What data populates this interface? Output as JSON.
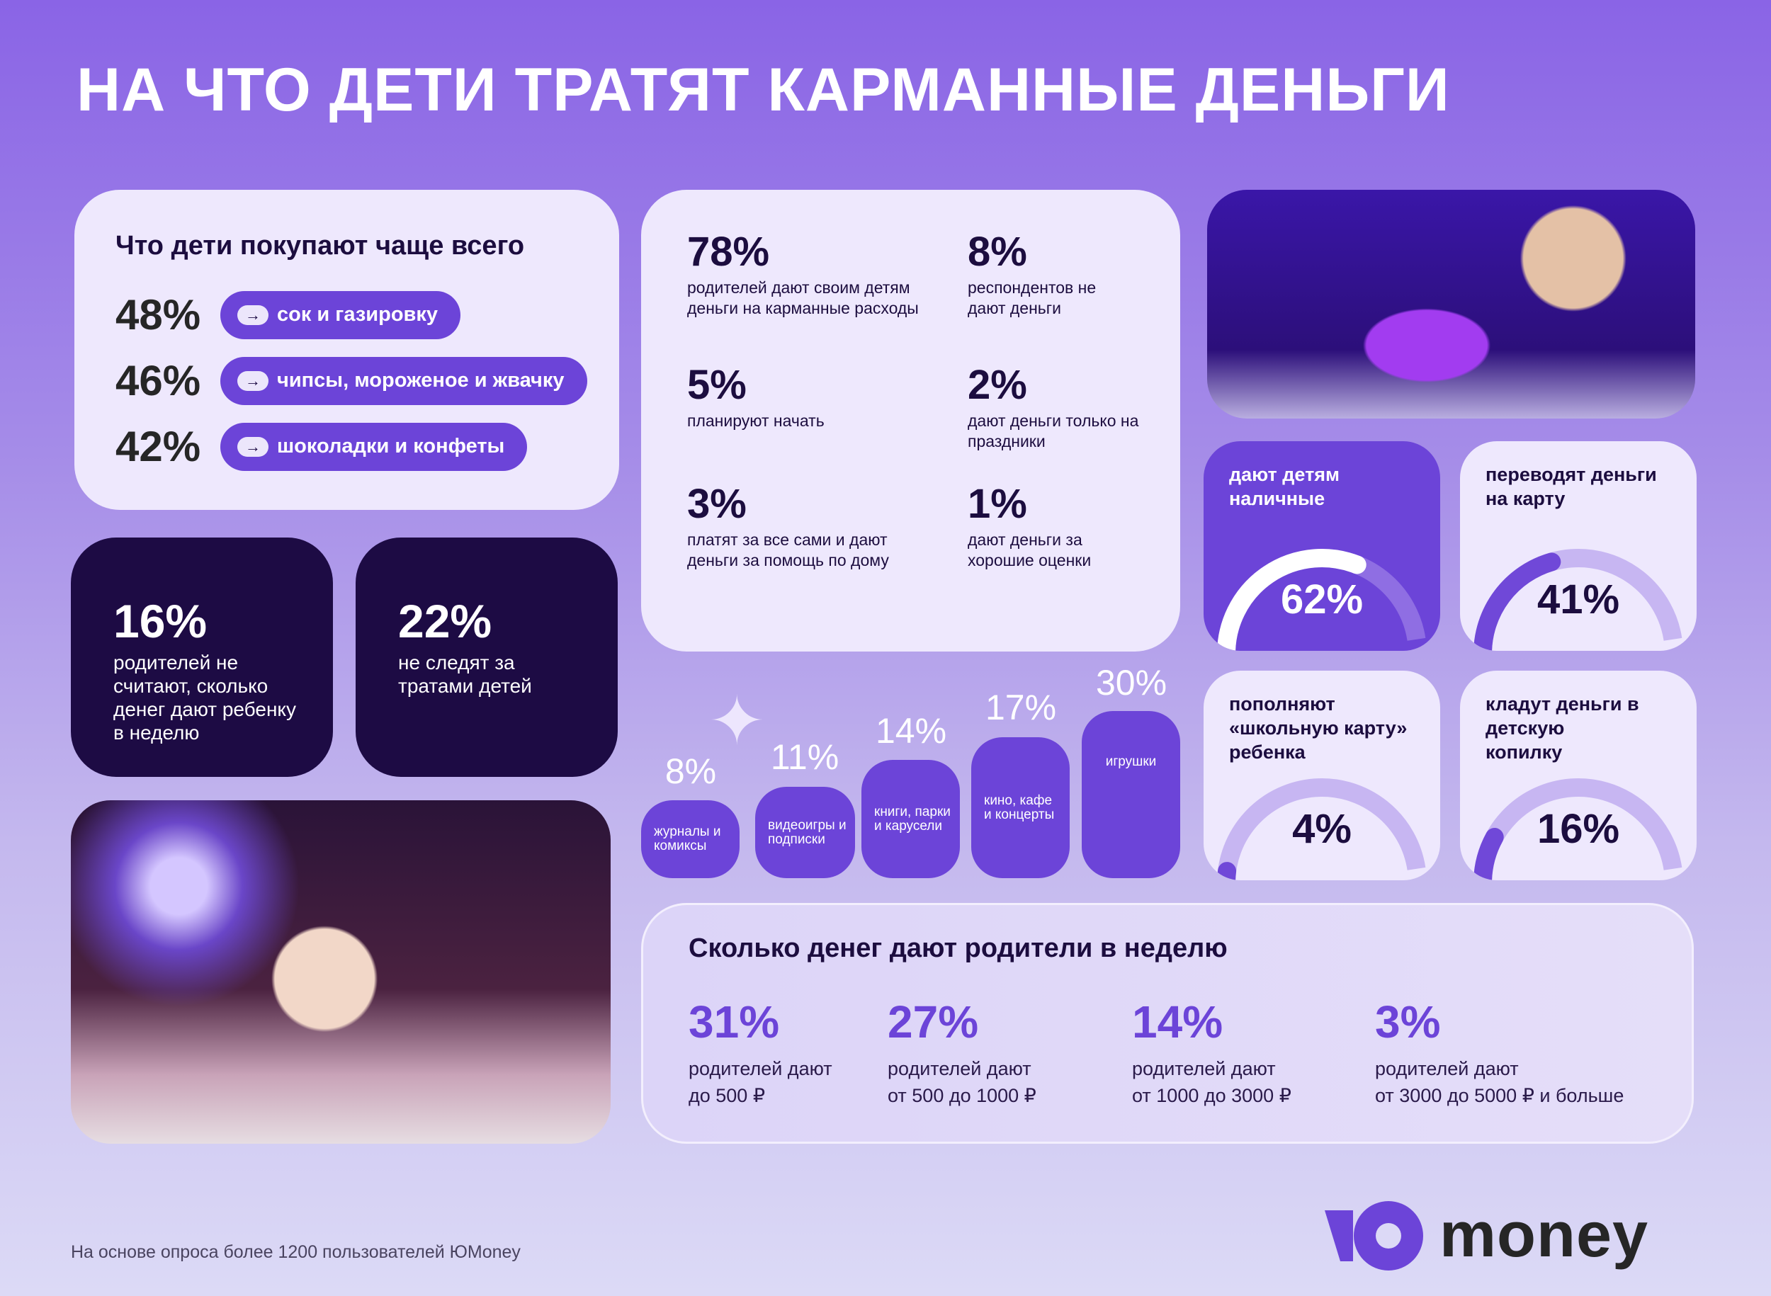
{
  "title": "НА ЧТО ДЕТИ ТРАТЯТ КАРМАННЫЕ ДЕНЬГИ",
  "buy": {
    "heading": "Что дети покупают чаще всего",
    "items": [
      {
        "pct": "48%",
        "label": "сок и газировку"
      },
      {
        "pct": "46%",
        "label": "чипсы, мороженое и жвачку"
      },
      {
        "pct": "42%",
        "label": "шоколадки и конфеты"
      }
    ]
  },
  "dark_cards": [
    {
      "pct": "16%",
      "text": "родителей не считают, сколько денег дают ребенку в неделю"
    },
    {
      "pct": "22%",
      "text": "не следят за тратами детей"
    }
  ],
  "stats": [
    {
      "pct": "78%",
      "text": "родителей дают своим детям деньги на карманные расходы"
    },
    {
      "pct": "8%",
      "text": "респондентов не дают деньги"
    },
    {
      "pct": "5%",
      "text": "планируют начать"
    },
    {
      "pct": "2%",
      "text": "дают деньги только на праздники"
    },
    {
      "pct": "3%",
      "text": "платят за все сами и дают деньги за помощь по дому"
    },
    {
      "pct": "1%",
      "text": "дают деньги за хорошие оценки"
    }
  ],
  "categories": [
    {
      "pct": "8%",
      "value": 8,
      "label": "журналы и комиксы"
    },
    {
      "pct": "11%",
      "value": 11,
      "label": "видеоигры и подписки"
    },
    {
      "pct": "14%",
      "value": 14,
      "label": "книги, парки и карусели"
    },
    {
      "pct": "17%",
      "value": 17,
      "label": "кино, кафе и концерты"
    },
    {
      "pct": "30%",
      "value": 30,
      "label": "игрушки"
    }
  ],
  "gauges": [
    {
      "label": "дают детям наличные",
      "pct": "62%",
      "value": 62
    },
    {
      "label": "переводят деньги на карту",
      "pct": "41%",
      "value": 41
    },
    {
      "label": "пополняют «школьную карту» ребенка",
      "pct": "4%",
      "value": 4
    },
    {
      "label": "кладут деньги в детскую копилку",
      "pct": "16%",
      "value": 16
    }
  ],
  "weekly": {
    "heading": "Сколько денег дают родители в неделю",
    "items": [
      {
        "pct": "31%",
        "line1": "родителей дают",
        "line2": "до 500 ₽"
      },
      {
        "pct": "27%",
        "line1": "родителей дают",
        "line2": "от 500 до 1000 ₽"
      },
      {
        "pct": "14%",
        "line1": "родителей дают",
        "line2": "от 1000 до 3000 ₽"
      },
      {
        "pct": "3%",
        "line1": "родителей дают",
        "line2": "от 3000 до 5000 ₽ и больше"
      }
    ]
  },
  "footer": "На основе опроса более 1200 пользователей ЮMoney",
  "logo": {
    "text": "money"
  },
  "colors": {
    "accent": "#6c44d8",
    "dark": "#1d0b44",
    "light": "#eee8fd"
  }
}
